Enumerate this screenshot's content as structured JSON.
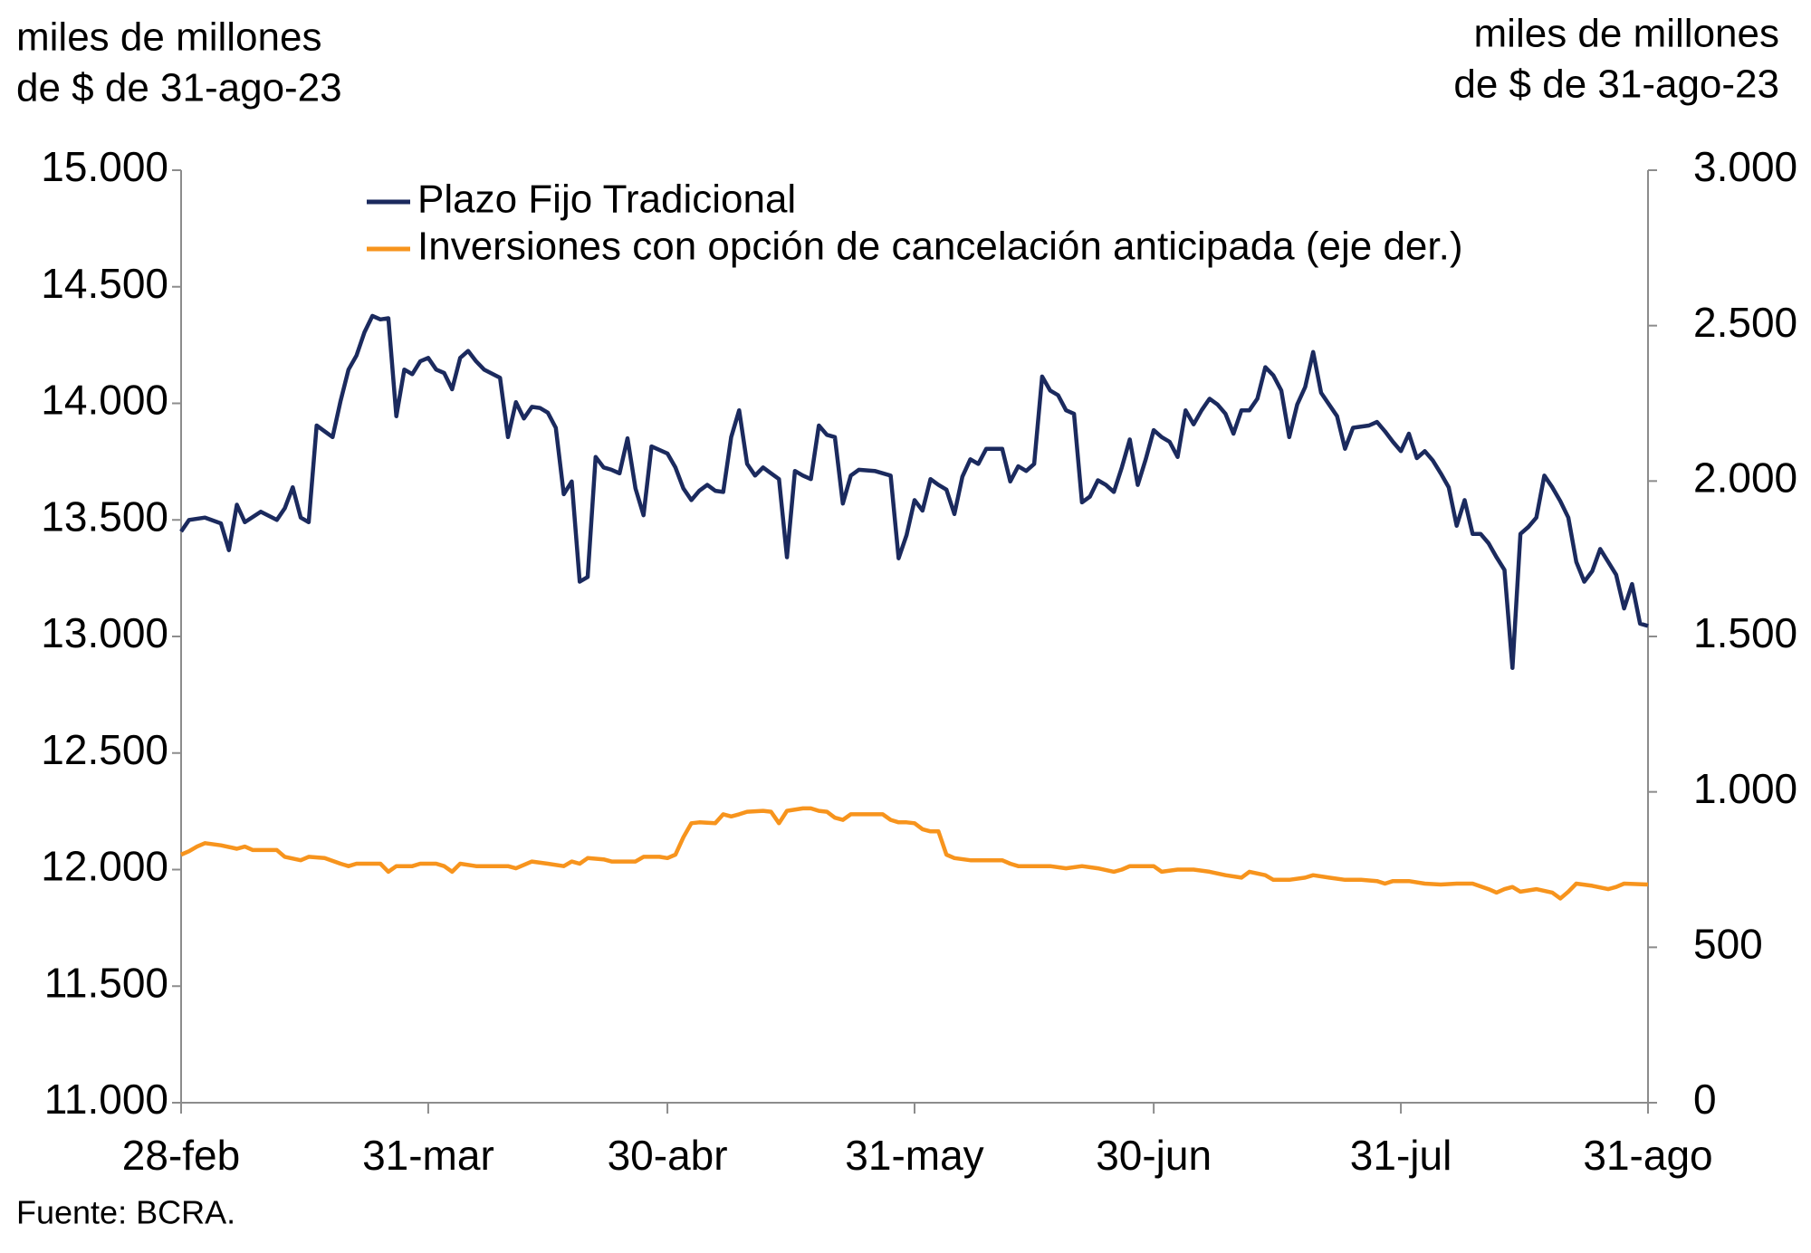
{
  "chart_data": {
    "type": "line",
    "y_label": [
      "miles de millones",
      "de $ de 31-ago-23"
    ],
    "y2_label": [
      "miles de millones",
      "de $ de 31-ago-23"
    ],
    "source": "Fuente: BCRA.",
    "xlim": [
      0,
      184
    ],
    "xticks": [
      {
        "value": 0,
        "label": "28-feb"
      },
      {
        "value": 31,
        "label": "31-mar"
      },
      {
        "value": 61,
        "label": "30-abr"
      },
      {
        "value": 92,
        "label": "31-may"
      },
      {
        "value": 122,
        "label": "30-jun"
      },
      {
        "value": 153,
        "label": "31-jul"
      },
      {
        "value": 184,
        "label": "31-ago"
      }
    ],
    "ylim": [
      11000,
      15000
    ],
    "yticks": [
      {
        "value": 11000,
        "label": "11.000"
      },
      {
        "value": 11500,
        "label": "11.500"
      },
      {
        "value": 12000,
        "label": "12.000"
      },
      {
        "value": 12500,
        "label": "12.500"
      },
      {
        "value": 13000,
        "label": "13.000"
      },
      {
        "value": 13500,
        "label": "13.500"
      },
      {
        "value": 14000,
        "label": "14.000"
      },
      {
        "value": 14500,
        "label": "14.500"
      },
      {
        "value": 15000,
        "label": "15.000"
      }
    ],
    "y2lim": [
      0,
      3000
    ],
    "y2ticks": [
      0,
      500,
      {
        "value": 1000,
        "label": "1.000"
      },
      {
        "value": 1500,
        "label": "1.500"
      },
      {
        "value": 2000,
        "label": "2.000"
      },
      {
        "value": 2500,
        "label": "2.500"
      },
      {
        "value": 3000,
        "label": "3.000"
      }
    ],
    "grid": false,
    "legend": "top-left",
    "series": [
      {
        "name": "Plazo Fijo Tradicional",
        "color": "#1b2a5e",
        "x": [
          0,
          1,
          3,
          5,
          6,
          7,
          8,
          10,
          12,
          13,
          14,
          15,
          16,
          17,
          19,
          20,
          21,
          22,
          23,
          24,
          25,
          26,
          27,
          28,
          29,
          30,
          31,
          32,
          33,
          34,
          35,
          36,
          37,
          38,
          40,
          41,
          42,
          43,
          44,
          45,
          46,
          47,
          48,
          49,
          50,
          51,
          52,
          53,
          54,
          55,
          56,
          57,
          58,
          59,
          61,
          62,
          63,
          64,
          65,
          66,
          67,
          68,
          69,
          70,
          71,
          72,
          73,
          74,
          75,
          76,
          77,
          78,
          79,
          80,
          81,
          82,
          83,
          84,
          85,
          87,
          89,
          90,
          91,
          92,
          93,
          94,
          95,
          96,
          97,
          98,
          99,
          100,
          101,
          103,
          104,
          105,
          106,
          107,
          108,
          109,
          110,
          111,
          112,
          113,
          114,
          115,
          116,
          117,
          118,
          119,
          120,
          121,
          122,
          123,
          124,
          125,
          126,
          127,
          128,
          129,
          130,
          131,
          132,
          133,
          134,
          135,
          136,
          137,
          138,
          139,
          140,
          141,
          142,
          143,
          144,
          145,
          146,
          147,
          149,
          150,
          151,
          152,
          153,
          154,
          155,
          156,
          157,
          158,
          159,
          160,
          161,
          162,
          163,
          164,
          165,
          166,
          167,
          168,
          169,
          170,
          171,
          172,
          173,
          174,
          175,
          176,
          177,
          178,
          179,
          180,
          181,
          182,
          183,
          184
        ],
        "values": [
          13450,
          13500,
          13510,
          13485,
          13370,
          13565,
          13490,
          13535,
          13500,
          13550,
          13640,
          13510,
          13490,
          13905,
          13855,
          14010,
          14145,
          14205,
          14305,
          14375,
          14360,
          14365,
          13945,
          14145,
          14125,
          14180,
          14195,
          14145,
          14130,
          14060,
          14195,
          14225,
          14180,
          14145,
          14110,
          13855,
          14005,
          13935,
          13985,
          13980,
          13960,
          13895,
          13610,
          13665,
          13235,
          13255,
          13770,
          13725,
          13715,
          13700,
          13850,
          13635,
          13520,
          13815,
          13785,
          13725,
          13635,
          13585,
          13625,
          13650,
          13625,
          13620,
          13855,
          13970,
          13740,
          13690,
          13725,
          13700,
          13675,
          13340,
          13710,
          13690,
          13675,
          13905,
          13865,
          13855,
          13570,
          13690,
          13715,
          13710,
          13690,
          13335,
          13435,
          13585,
          13540,
          13675,
          13650,
          13630,
          13525,
          13685,
          13760,
          13740,
          13805,
          13805,
          13665,
          13730,
          13710,
          13740,
          14115,
          14055,
          14035,
          13970,
          13955,
          13575,
          13600,
          13670,
          13650,
          13620,
          13725,
          13845,
          13650,
          13760,
          13885,
          13855,
          13835,
          13770,
          13970,
          13910,
          13970,
          14020,
          13995,
          13955,
          13870,
          13970,
          13970,
          14020,
          14155,
          14120,
          14055,
          13855,
          13995,
          14070,
          14220,
          14045,
          13995,
          13945,
          13805,
          13895,
          13905,
          13920,
          13880,
          13835,
          13795,
          13870,
          13765,
          13795,
          13755,
          13700,
          13640,
          13475,
          13585,
          13440,
          13440,
          13400,
          13340,
          13285,
          12865,
          13440,
          13470,
          13510,
          13690,
          13640,
          13580,
          13510,
          13320,
          13235,
          13280,
          13375,
          13320,
          13265,
          13120,
          13225,
          13055,
          13045
        ]
      },
      {
        "name": "Inversiones con opción de cancelación anticipada (eje der.)",
        "color": "#f7941d",
        "axis": "y2",
        "x": [
          0,
          1,
          2,
          3,
          5,
          7,
          8,
          9,
          11,
          12,
          13,
          15,
          16,
          18,
          20,
          21,
          22,
          25,
          26,
          27,
          29,
          30,
          32,
          33,
          34,
          35,
          37,
          40,
          41,
          42,
          44,
          46,
          48,
          49,
          50,
          51,
          53,
          54,
          56,
          57,
          58,
          60,
          61,
          62,
          63,
          64,
          65,
          67,
          68,
          69,
          70,
          71,
          73,
          74,
          75,
          76,
          78,
          79,
          80,
          81,
          82,
          83,
          84,
          87,
          88,
          89,
          90,
          91,
          92,
          93,
          94,
          95,
          96,
          97,
          99,
          101,
          103,
          104,
          105,
          107,
          109,
          111,
          113,
          115,
          117,
          118,
          119,
          122,
          123,
          125,
          127,
          129,
          131,
          133,
          134,
          136,
          137,
          139,
          141,
          142,
          144,
          146,
          148,
          150,
          151,
          152,
          154,
          156,
          158,
          160,
          162,
          164,
          165,
          166,
          167,
          168,
          170,
          172,
          173,
          174,
          175,
          177,
          179,
          180,
          181,
          184
        ],
        "values": [
          798,
          809,
          824,
          835,
          828,
          817,
          824,
          813,
          813,
          813,
          791,
          780,
          791,
          787,
          769,
          761,
          769,
          769,
          743,
          761,
          761,
          769,
          769,
          761,
          743,
          769,
          761,
          761,
          761,
          754,
          776,
          769,
          761,
          776,
          769,
          787,
          783,
          776,
          776,
          776,
          791,
          791,
          787,
          798,
          854,
          899,
          902,
          899,
          928,
          921,
          928,
          936,
          939,
          936,
          899,
          939,
          947,
          947,
          939,
          936,
          917,
          910,
          928,
          928,
          928,
          910,
          902,
          902,
          899,
          880,
          873,
          873,
          798,
          787,
          780,
          780,
          780,
          769,
          761,
          761,
          761,
          754,
          761,
          754,
          743,
          750,
          761,
          761,
          743,
          750,
          750,
          743,
          732,
          724,
          743,
          732,
          717,
          717,
          724,
          732,
          724,
          717,
          717,
          713,
          705,
          713,
          713,
          705,
          702,
          705,
          705,
          687,
          676,
          687,
          694,
          679,
          687,
          676,
          657,
          679,
          705,
          698,
          687,
          694,
          705,
          702
        ]
      }
    ]
  }
}
